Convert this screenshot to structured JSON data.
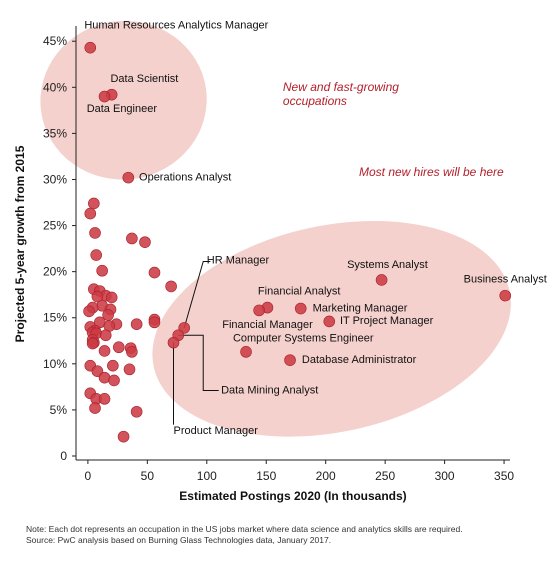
{
  "chart_data": {
    "type": "scatter",
    "xlabel": "Estimated Postings 2020 (In thousands)",
    "ylabel": "Projected 5-year growth from 2015",
    "xlim": [
      -10,
      355
    ],
    "ylim": [
      0,
      46
    ],
    "xticks": [
      0,
      50,
      100,
      150,
      200,
      250,
      300,
      350
    ],
    "xtick_labels": [
      "0",
      "50",
      "100",
      "150",
      "200",
      "250",
      "300",
      "350"
    ],
    "yticks": [
      0,
      5,
      10,
      15,
      20,
      25,
      30,
      35,
      40,
      45
    ],
    "ytick_labels": [
      "0",
      "5%",
      "10%",
      "15%",
      "20%",
      "25%",
      "30%",
      "35%",
      "40%",
      "45%"
    ],
    "grid": false,
    "colors": {
      "point": "#cc3b44",
      "point_stroke": "#a9232d",
      "ellipse_fill": "#f4d1cd",
      "annotation": "#b3202b",
      "leader": "#111111",
      "axis": "#222222"
    },
    "ellipses": [
      {
        "cx": 30,
        "cy": 38.6,
        "rx": 70,
        "ry": 8.6,
        "rotate": -8
      },
      {
        "cx": 205,
        "cy": 13.8,
        "rx": 153,
        "ry": 11.2,
        "rotate": -12
      }
    ],
    "annotations": [
      {
        "lines": [
          "New and fast-growing",
          "occupations"
        ],
        "x": 164,
        "y": 39.6,
        "anchor": "start"
      },
      {
        "lines": [
          "Most new hires will be here"
        ],
        "x": 228,
        "y": 30.4,
        "anchor": "start"
      }
    ],
    "labeled_points": [
      {
        "name": "Human Resources Analytics Manager",
        "x": 2,
        "y": 44.3
      },
      {
        "name": "Data Scientist",
        "x": 20,
        "y": 39.2
      },
      {
        "name": "Data Engineer",
        "x": 14,
        "y": 39
      },
      {
        "name": "Operations Analyst",
        "x": 34,
        "y": 30.2
      },
      {
        "name": "HR Manager",
        "x": 81,
        "y": 13.9
      },
      {
        "name": "Systems Analyst",
        "x": 247,
        "y": 19.1
      },
      {
        "name": "Business Analyst",
        "x": 351,
        "y": 17.4
      },
      {
        "name": "Financial Analyst",
        "x": 151,
        "y": 16.1
      },
      {
        "name": "Marketing Manager",
        "x": 179,
        "y": 16
      },
      {
        "name": "Financial Manager",
        "x": 144,
        "y": 15.8
      },
      {
        "name": "IT Project Manager",
        "x": 203,
        "y": 14.6
      },
      {
        "name": "Computer Systems Engineer",
        "x": 133,
        "y": 11.3
      },
      {
        "name": "Database Administrator",
        "x": 170,
        "y": 10.4
      },
      {
        "name": "Data Mining Analyst",
        "x": 76,
        "y": 13.1
      },
      {
        "name": "Product Manager",
        "x": 72,
        "y": 12.3
      }
    ],
    "point_labels": [
      {
        "text": "Human Resources Analytics Manager",
        "x": -3,
        "y": 46.4,
        "anchor": "start"
      },
      {
        "text": "Data Scientist",
        "x": 19,
        "y": 40.6,
        "anchor": "start"
      },
      {
        "text": "Data Engineer",
        "x": -1,
        "y": 37.3,
        "anchor": "start"
      },
      {
        "text": "Operations Analyst",
        "x": 43,
        "y": 29.9,
        "anchor": "start"
      },
      {
        "text": "HR Manager",
        "x": 100,
        "y": 20.9,
        "anchor": "start"
      },
      {
        "text": "Systems Analyst",
        "x": 218,
        "y": 20.4,
        "anchor": "start"
      },
      {
        "text": "Business Analyst",
        "x": 316,
        "y": 18.8,
        "anchor": "start"
      },
      {
        "text": "Financial Analyst",
        "x": 143,
        "y": 17.5,
        "anchor": "start"
      },
      {
        "text": "Marketing Manager",
        "x": 189,
        "y": 15.7,
        "anchor": "start"
      },
      {
        "text": "Financial Manager",
        "x": 113,
        "y": 13.9,
        "anchor": "start"
      },
      {
        "text": "IT Project Manager",
        "x": 212,
        "y": 14.3,
        "anchor": "start"
      },
      {
        "text": "Computer Systems Engineer",
        "x": 122,
        "y": 12.4,
        "anchor": "start"
      },
      {
        "text": "Database Administrator",
        "x": 180,
        "y": 10.1,
        "anchor": "start"
      },
      {
        "text": "Data Mining Analyst",
        "x": 112,
        "y": 6.8,
        "anchor": "start"
      },
      {
        "text": "Product Manager",
        "x": 72,
        "y": 2.4,
        "anchor": "start"
      }
    ],
    "leaders": [
      {
        "points": [
          [
            81,
            13.9
          ],
          [
            97,
            21.1
          ],
          [
            103,
            21.1
          ]
        ]
      },
      {
        "points": [
          [
            76,
            13.1
          ],
          [
            97,
            13.1
          ],
          [
            97,
            7.1
          ],
          [
            110,
            7.1
          ]
        ]
      },
      {
        "points": [
          [
            72,
            12.3
          ],
          [
            72,
            3.4
          ]
        ]
      }
    ],
    "other_points": [
      {
        "x": 5,
        "y": 27.4
      },
      {
        "x": 2,
        "y": 26.3
      },
      {
        "x": 6,
        "y": 24.2
      },
      {
        "x": 37,
        "y": 23.6
      },
      {
        "x": 48,
        "y": 23.2
      },
      {
        "x": 7,
        "y": 21.8
      },
      {
        "x": 12,
        "y": 20.1
      },
      {
        "x": 56,
        "y": 19.9
      },
      {
        "x": 70,
        "y": 18.4
      },
      {
        "x": 5,
        "y": 18.1
      },
      {
        "x": 10,
        "y": 17.9
      },
      {
        "x": 15,
        "y": 17.4
      },
      {
        "x": 8,
        "y": 17.3
      },
      {
        "x": 20,
        "y": 17.2
      },
      {
        "x": 12,
        "y": 16.3
      },
      {
        "x": 4,
        "y": 16.1
      },
      {
        "x": 1,
        "y": 15.7
      },
      {
        "x": 19,
        "y": 15.9
      },
      {
        "x": 17,
        "y": 15.3
      },
      {
        "x": 56,
        "y": 14.8
      },
      {
        "x": 56,
        "y": 14.5
      },
      {
        "x": 41,
        "y": 14.3
      },
      {
        "x": 10,
        "y": 14.5
      },
      {
        "x": 24,
        "y": 14.3
      },
      {
        "x": 18,
        "y": 14.1
      },
      {
        "x": 2,
        "y": 14
      },
      {
        "x": 6,
        "y": 13.6
      },
      {
        "x": 4,
        "y": 13.4
      },
      {
        "x": 7,
        "y": 13.3
      },
      {
        "x": 15,
        "y": 13.1
      },
      {
        "x": 4,
        "y": 12.6
      },
      {
        "x": 5,
        "y": 12.3
      },
      {
        "x": 4,
        "y": 12.2
      },
      {
        "x": 26,
        "y": 11.8
      },
      {
        "x": 36,
        "y": 11.7
      },
      {
        "x": 37,
        "y": 11.3
      },
      {
        "x": 14,
        "y": 11.4
      },
      {
        "x": 2,
        "y": 9.8
      },
      {
        "x": 21,
        "y": 9.8
      },
      {
        "x": 8,
        "y": 9.2
      },
      {
        "x": 35,
        "y": 9.4
      },
      {
        "x": 14,
        "y": 8.5
      },
      {
        "x": 22,
        "y": 8.2
      },
      {
        "x": 2,
        "y": 6.8
      },
      {
        "x": 7,
        "y": 6.2
      },
      {
        "x": 14,
        "y": 6.2
      },
      {
        "x": 6,
        "y": 5.2
      },
      {
        "x": 41,
        "y": 4.8
      },
      {
        "x": 30,
        "y": 2.1
      }
    ]
  },
  "footnote": {
    "note": "Note: Each dot represents an occupation in the US jobs market where data science and analytics skills are required.",
    "source": "Source: PwC analysis based on Burning Glass Technologies data, January 2017."
  }
}
